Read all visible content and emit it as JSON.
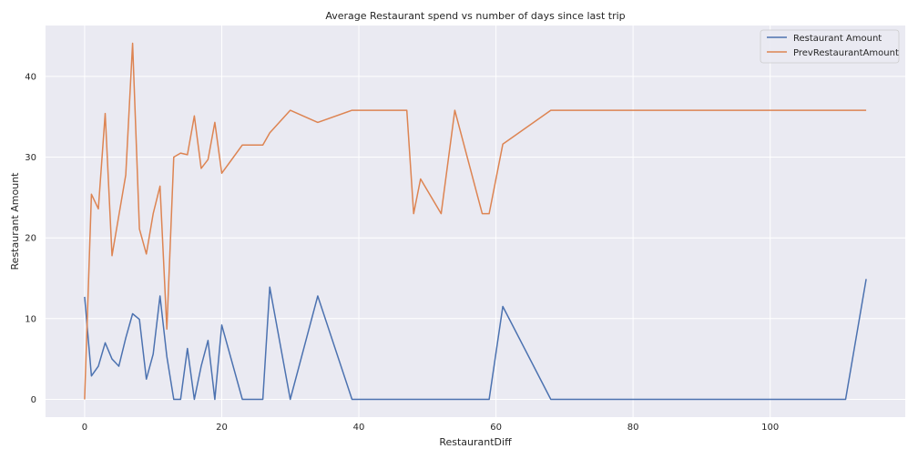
{
  "chart_data": {
    "type": "line",
    "title": "Average Restaurant spend vs number of days since last trip",
    "xlabel": "RestaurantDiff",
    "ylabel": "Restaurant Amount",
    "xlim": [
      -5.7,
      119.7
    ],
    "ylim": [
      -2.2,
      46.3
    ],
    "xticks": [
      0,
      20,
      40,
      60,
      80,
      100
    ],
    "yticks": [
      0,
      10,
      20,
      30,
      40
    ],
    "grid": true,
    "legend_position": "top-right",
    "series": [
      {
        "name": "Restaurant Amount",
        "color": "#4c72b0",
        "x": [
          0,
          1,
          2,
          3,
          4,
          5,
          6,
          7,
          8,
          9,
          10,
          11,
          12,
          13,
          14,
          15,
          16,
          17,
          18,
          19,
          20,
          23,
          26,
          27,
          30,
          34,
          39,
          59,
          61,
          68,
          111,
          114
        ],
        "y": [
          12.7,
          2.9,
          4.1,
          7.0,
          5.0,
          4.1,
          7.6,
          10.6,
          9.9,
          2.5,
          5.6,
          12.8,
          5.3,
          0.0,
          0.0,
          6.3,
          0.0,
          4.1,
          7.3,
          0.0,
          9.2,
          0.0,
          0.0,
          13.9,
          0.0,
          12.8,
          0.0,
          0.0,
          11.5,
          0.0,
          0.0,
          14.9
        ]
      },
      {
        "name": "PrevRestaurantAmount",
        "color": "#dd8452",
        "x": [
          0,
          1,
          2,
          3,
          4,
          6,
          7,
          8,
          9,
          10,
          11,
          12,
          13,
          14,
          15,
          16,
          17,
          18,
          19,
          20,
          23,
          26,
          27,
          30,
          34,
          39,
          47,
          48,
          49,
          52,
          54,
          58,
          59,
          61,
          68,
          114
        ],
        "y": [
          0.0,
          25.4,
          23.6,
          35.4,
          17.8,
          27.8,
          44.1,
          21.1,
          18.0,
          23.0,
          26.4,
          8.7,
          30.0,
          30.5,
          30.3,
          35.1,
          28.6,
          29.7,
          34.3,
          28.0,
          31.5,
          31.5,
          33.0,
          35.8,
          34.3,
          35.8,
          35.8,
          23.0,
          27.3,
          23.0,
          35.8,
          23.0,
          23.0,
          31.6,
          35.8,
          35.8
        ]
      }
    ]
  }
}
